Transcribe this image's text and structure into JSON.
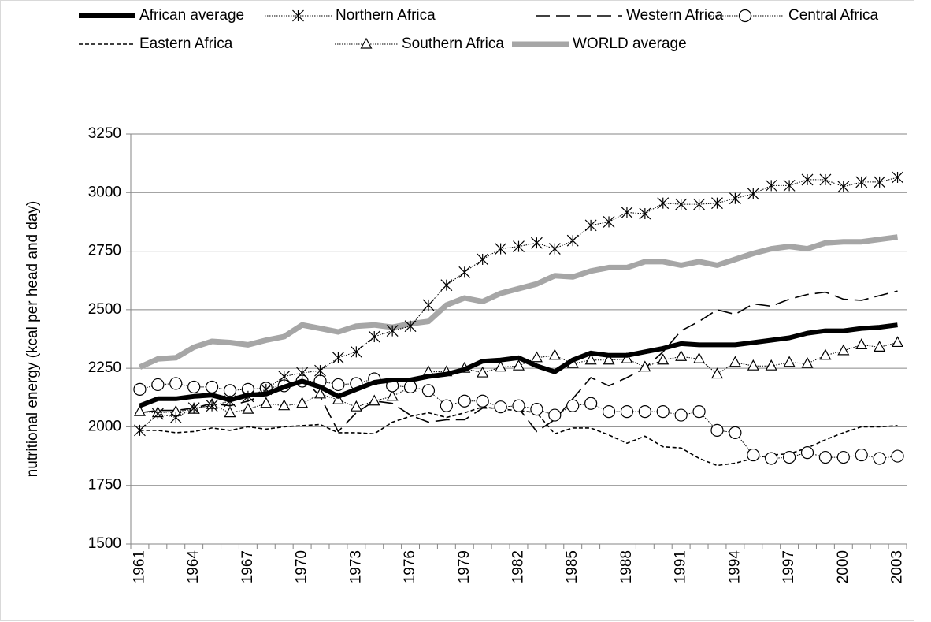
{
  "chart_data": {
    "type": "line",
    "y_axis_label": "nutritional energy (kcal per head and day)",
    "categories": [
      "1961",
      null,
      null,
      "1964",
      null,
      null,
      "1967",
      null,
      null,
      "1970",
      null,
      null,
      "1973",
      null,
      null,
      "1976",
      null,
      null,
      "1979",
      null,
      null,
      "1982",
      null,
      null,
      "1985",
      null,
      null,
      "1988",
      null,
      null,
      "1991",
      null,
      null,
      "1994",
      null,
      null,
      "1997",
      null,
      null,
      "2000",
      null,
      null,
      "2003"
    ],
    "ylim": [
      1500,
      3250
    ],
    "yticks": [
      1500,
      1750,
      2000,
      2250,
      2500,
      2750,
      3000,
      3250
    ],
    "grid": true,
    "series": [
      {
        "name": "African average",
        "color": "#000000",
        "line_width": 6,
        "dash": "none",
        "marker": "none",
        "values": [
          2090,
          2120,
          2120,
          2130,
          2135,
          2115,
          2135,
          2140,
          2170,
          2195,
          2170,
          2130,
          2160,
          2190,
          2200,
          2200,
          2215,
          2225,
          2245,
          2280,
          2285,
          2295,
          2260,
          2235,
          2285,
          2315,
          2305,
          2305,
          2320,
          2335,
          2355,
          2350,
          2350,
          2350,
          2360,
          2370,
          2380,
          2400,
          2410,
          2410,
          2420,
          2425,
          2435
        ]
      },
      {
        "name": "Northern Africa",
        "color": "#000000",
        "line_width": 1,
        "dash": "1.5 1.5",
        "marker": "asterisk",
        "values": [
          1985,
          2055,
          2040,
          2080,
          2090,
          2110,
          2130,
          2160,
          2215,
          2230,
          2240,
          2295,
          2320,
          2385,
          2410,
          2430,
          2520,
          2605,
          2660,
          2715,
          2760,
          2770,
          2785,
          2760,
          2795,
          2860,
          2875,
          2915,
          2910,
          2955,
          2950,
          2950,
          2955,
          2975,
          2995,
          3030,
          3030,
          3055,
          3055,
          3025,
          3045,
          3045,
          3065
        ]
      },
      {
        "name": "Western Africa",
        "color": "#000000",
        "line_width": 1.6,
        "dash": "18 8",
        "marker": "none",
        "values": [
          2060,
          2070,
          2070,
          2080,
          2100,
          2090,
          2110,
          2140,
          2180,
          2210,
          2130,
          1980,
          2060,
          2110,
          2100,
          2050,
          2020,
          2030,
          2030,
          2080,
          2080,
          2080,
          1980,
          2030,
          2120,
          2210,
          2175,
          2210,
          2250,
          2320,
          2410,
          2450,
          2500,
          2480,
          2525,
          2515,
          2545,
          2565,
          2575,
          2545,
          2540,
          2560,
          2580
        ]
      },
      {
        "name": "Central Africa",
        "color": "#000000",
        "line_width": 1,
        "dash": "1.5 1.5",
        "marker": "circle",
        "values": [
          2160,
          2180,
          2185,
          2170,
          2170,
          2155,
          2160,
          2165,
          2175,
          2195,
          2195,
          2180,
          2185,
          2205,
          2175,
          2170,
          2155,
          2090,
          2110,
          2110,
          2085,
          2090,
          2075,
          2050,
          2090,
          2100,
          2065,
          2065,
          2065,
          2065,
          2050,
          2065,
          1985,
          1975,
          1880,
          1865,
          1870,
          1890,
          1870,
          1870,
          1880,
          1865,
          1875
        ]
      },
      {
        "name": "Eastern Africa",
        "color": "#000000",
        "line_width": 1.6,
        "dash": "5 3",
        "marker": "none",
        "values": [
          1985,
          1985,
          1975,
          1980,
          1995,
          1985,
          2000,
          1990,
          2000,
          2005,
          2010,
          1975,
          1975,
          1970,
          2020,
          2045,
          2060,
          2040,
          2060,
          2085,
          2075,
          2070,
          2060,
          1970,
          1995,
          1995,
          1965,
          1930,
          1960,
          1915,
          1910,
          1865,
          1835,
          1845,
          1865,
          1880,
          1885,
          1910,
          1945,
          1975,
          2000,
          2000,
          2005
        ]
      },
      {
        "name": "Southern Africa",
        "color": "#000000",
        "line_width": 1,
        "dash": "1.5 1.5",
        "marker": "triangle",
        "values": [
          2065,
          2060,
          2065,
          2075,
          2095,
          2060,
          2075,
          2100,
          2090,
          2100,
          2140,
          2115,
          2085,
          2110,
          2130,
          2170,
          2235,
          2235,
          2250,
          2230,
          2255,
          2260,
          2295,
          2305,
          2270,
          2285,
          2285,
          2290,
          2255,
          2285,
          2300,
          2290,
          2225,
          2275,
          2260,
          2260,
          2275,
          2270,
          2305,
          2325,
          2350,
          2340,
          2360
        ]
      },
      {
        "name": "WORLD average",
        "color": "#a6a6a6",
        "line_width": 7,
        "dash": "none",
        "marker": "none",
        "values": [
          2255,
          2290,
          2295,
          2340,
          2365,
          2360,
          2350,
          2370,
          2385,
          2435,
          2420,
          2405,
          2430,
          2435,
          2425,
          2440,
          2450,
          2520,
          2550,
          2535,
          2570,
          2590,
          2610,
          2645,
          2640,
          2665,
          2680,
          2680,
          2705,
          2705,
          2690,
          2705,
          2690,
          2715,
          2740,
          2760,
          2770,
          2760,
          2785,
          2790,
          2790,
          2800,
          2810
        ]
      }
    ]
  }
}
